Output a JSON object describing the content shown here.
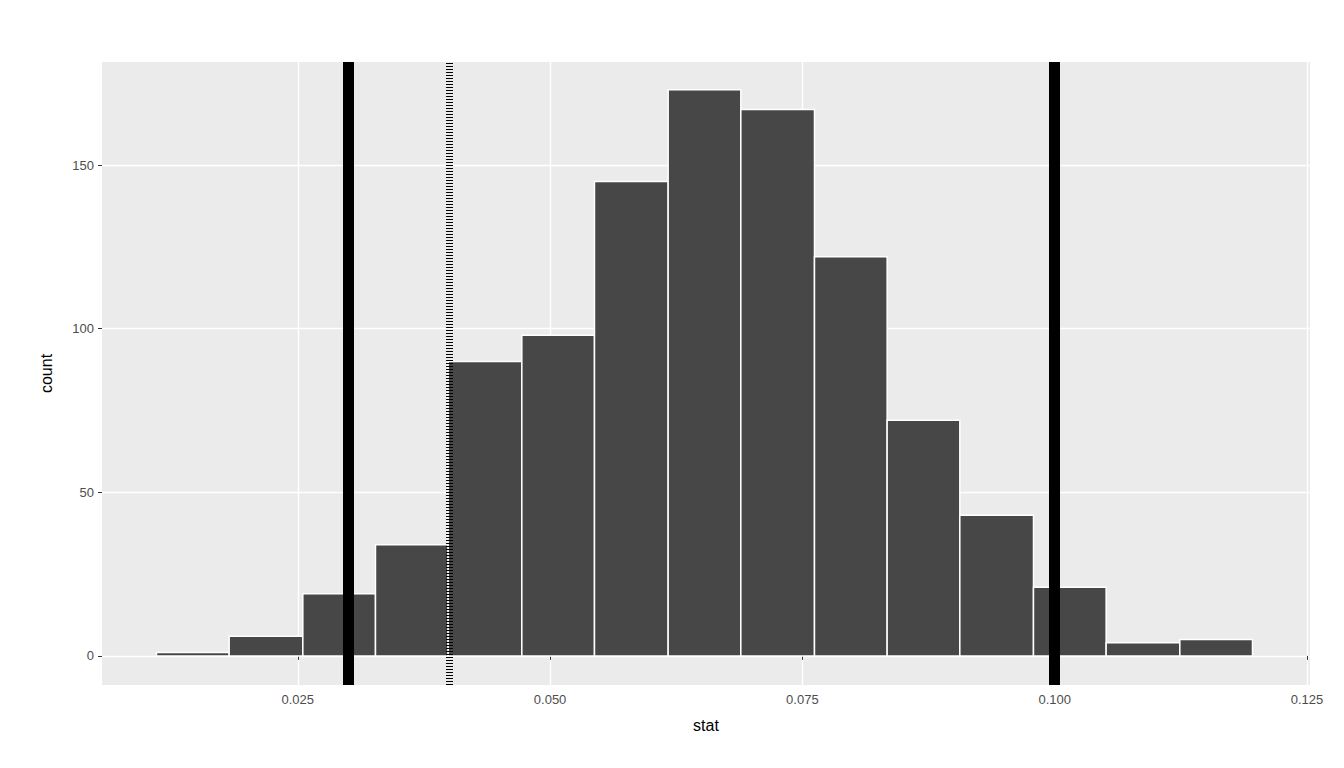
{
  "chart_data": {
    "type": "histogram",
    "x_label": "stat",
    "y_label": "count",
    "bins": [
      0.011,
      0.0182,
      0.0255,
      0.0327,
      0.0399,
      0.0472,
      0.0544,
      0.0617,
      0.0689,
      0.0762,
      0.0834,
      0.0906,
      0.0979,
      0.1051,
      0.1124,
      0.1196
    ],
    "counts": [
      1,
      6,
      19,
      34,
      90,
      98,
      145,
      173,
      167,
      122,
      72,
      43,
      21,
      4,
      5
    ],
    "color": "#474747",
    "reference_lines": [
      {
        "x": 0.0329,
        "line_style": "solid"
      },
      {
        "x": 0.035,
        "line_style": "dotted"
      },
      {
        "x": 0.0995,
        "line_style": "solid"
      }
    ],
    "xlim": [
      0.0056,
      0.1253
    ],
    "xticks": [
      0.025,
      {
        "value": 0.05,
        "label": "0.050"
      },
      0.075,
      {
        "value": 0.1,
        "label": "0.100"
      },
      0.125
    ],
    "ylim": [
      -8.9,
      181.5
    ],
    "yticks": [
      0,
      50,
      100,
      150
    ],
    "grid": true
  }
}
